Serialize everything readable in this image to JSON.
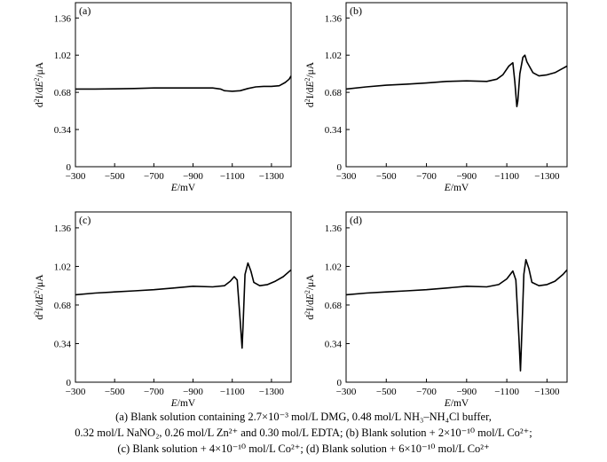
{
  "chart_data": [
    {
      "type": "line",
      "panel_label": "(a)",
      "xlabel": "E/mV",
      "ylabel": "d2I/dE2/μA",
      "x_ticks": [
        -300,
        -500,
        -700,
        -900,
        -1100,
        -1300
      ],
      "x_tick_labels": [
        "−300",
        "−500",
        "−700",
        "−900",
        "−1100",
        "−1300"
      ],
      "y_ticks": [
        0,
        0.34,
        0.68,
        1.02,
        1.36
      ],
      "y_tick_labels": [
        "0",
        "0.34",
        "0.68",
        "1.02",
        "1.36"
      ],
      "xlim": [
        -300,
        -1400
      ],
      "ylim": [
        0,
        1.5
      ],
      "series": [
        {
          "x": [
            -300,
            -400,
            -500,
            -600,
            -700,
            -800,
            -900,
            -1000,
            -1040,
            -1060,
            -1100,
            -1140,
            -1180,
            -1220,
            -1260,
            -1300,
            -1340,
            -1370,
            -1390,
            -1400
          ],
          "y": [
            0.71,
            0.71,
            0.712,
            0.715,
            0.72,
            0.72,
            0.72,
            0.72,
            0.71,
            0.695,
            0.69,
            0.695,
            0.715,
            0.73,
            0.735,
            0.735,
            0.74,
            0.77,
            0.8,
            0.83
          ]
        }
      ]
    },
    {
      "type": "line",
      "panel_label": "(b)",
      "xlabel": "E/mV",
      "ylabel": "d2I/dE2/μA",
      "x_ticks": [
        -300,
        -500,
        -700,
        -900,
        -1100,
        -1300
      ],
      "x_tick_labels": [
        "−300",
        "−500",
        "−700",
        "−900",
        "−1100",
        "−1300"
      ],
      "y_ticks": [
        0,
        0.34,
        0.68,
        1.02,
        1.36
      ],
      "y_tick_labels": [
        "0",
        "0.34",
        "0.68",
        "1.02",
        "1.36"
      ],
      "xlim": [
        -300,
        -1400
      ],
      "ylim": [
        0,
        1.5
      ],
      "series": [
        {
          "x": [
            -300,
            -400,
            -500,
            -600,
            -700,
            -800,
            -900,
            -1000,
            -1050,
            -1080,
            -1110,
            -1130,
            -1140,
            -1150,
            -1155,
            -1165,
            -1180,
            -1190,
            -1200,
            -1230,
            -1260,
            -1300,
            -1340,
            -1370,
            -1400
          ],
          "y": [
            0.71,
            0.73,
            0.745,
            0.755,
            0.765,
            0.78,
            0.785,
            0.78,
            0.8,
            0.84,
            0.92,
            0.95,
            0.78,
            0.55,
            0.6,
            0.85,
            1.0,
            1.02,
            0.96,
            0.86,
            0.83,
            0.84,
            0.86,
            0.89,
            0.92
          ]
        }
      ]
    },
    {
      "type": "line",
      "panel_label": "(c)",
      "xlabel": "E/mV",
      "ylabel": "d2I/dE2/μA",
      "x_ticks": [
        -300,
        -500,
        -700,
        -900,
        -1100,
        -1300
      ],
      "x_tick_labels": [
        "−300",
        "−500",
        "−700",
        "−900",
        "−1100",
        "−1300"
      ],
      "y_ticks": [
        0,
        0.34,
        0.68,
        1.02,
        1.36
      ],
      "y_tick_labels": [
        "0",
        "0.34",
        "0.68",
        "1.02",
        "1.36"
      ],
      "xlim": [
        -300,
        -1400
      ],
      "ylim": [
        0,
        1.5
      ],
      "series": [
        {
          "x": [
            -300,
            -400,
            -500,
            -600,
            -700,
            -800,
            -900,
            -1000,
            -1060,
            -1090,
            -1110,
            -1125,
            -1140,
            -1150,
            -1155,
            -1165,
            -1180,
            -1195,
            -1210,
            -1240,
            -1280,
            -1320,
            -1360,
            -1400
          ],
          "y": [
            0.77,
            0.785,
            0.795,
            0.805,
            0.815,
            0.83,
            0.845,
            0.84,
            0.85,
            0.89,
            0.93,
            0.9,
            0.55,
            0.3,
            0.5,
            0.95,
            1.05,
            0.98,
            0.88,
            0.85,
            0.86,
            0.89,
            0.93,
            0.99
          ]
        }
      ]
    },
    {
      "type": "line",
      "panel_label": "(d)",
      "xlabel": "E/mV",
      "ylabel": "d2I/dE2/μA",
      "x_ticks": [
        -300,
        -500,
        -700,
        -900,
        -1100,
        -1300
      ],
      "x_tick_labels": [
        "−300",
        "−500",
        "−700",
        "−900",
        "−1100",
        "−1300"
      ],
      "y_ticks": [
        0,
        0.34,
        0.68,
        1.02,
        1.36
      ],
      "y_tick_labels": [
        "0",
        "0.34",
        "0.68",
        "1.02",
        "1.36"
      ],
      "xlim": [
        -300,
        -1400
      ],
      "ylim": [
        0,
        1.5
      ],
      "series": [
        {
          "x": [
            -300,
            -400,
            -500,
            -600,
            -700,
            -800,
            -900,
            -1000,
            -1060,
            -1100,
            -1130,
            -1145,
            -1160,
            -1168,
            -1175,
            -1185,
            -1195,
            -1210,
            -1225,
            -1260,
            -1300,
            -1340,
            -1380,
            -1400
          ],
          "y": [
            0.77,
            0.785,
            0.795,
            0.805,
            0.815,
            0.83,
            0.845,
            0.84,
            0.86,
            0.91,
            0.98,
            0.9,
            0.4,
            0.1,
            0.45,
            0.95,
            1.08,
            1.0,
            0.88,
            0.85,
            0.86,
            0.89,
            0.95,
            0.99
          ]
        }
      ]
    }
  ],
  "caption": {
    "line1": "(a)  Blank  solution containing 2.7×10⁻³ mol/L DMG, 0.48 mol/L NH₃–NH₄Cl buffer,",
    "line2": "0.32 mol/L NaNO₂, 0.26 mol/L Zn²⁺ and 0.30 mol/L EDTA;  (b)  Blank  solution  +  2×10⁻¹⁰  mol/L  Co²⁺;",
    "line3": "(c)  Blank  solution  +  4×10⁻¹⁰  mol/L  Co²⁺;  (d)  Blank  solution  + 6×10⁻¹⁰ mol/L Co²⁺"
  }
}
